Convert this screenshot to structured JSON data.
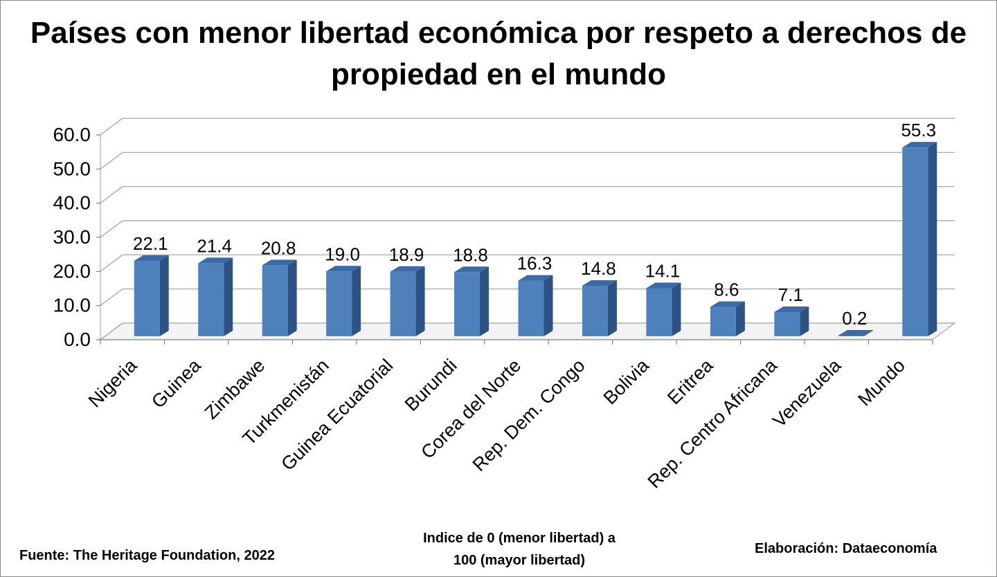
{
  "chart_data": {
    "type": "bar",
    "title": "Países con menor libertad económica por respeto a derechos de propiedad en el mundo",
    "categories": [
      "Nigeria",
      "Guinea",
      "Zimbawe",
      "Turkmenistán",
      "Guinea Ecuatorial",
      "Burundi",
      "Corea del Norte",
      "Rep. Dem. Congo",
      "Bolivia",
      "Eritrea",
      "Rep. Centro Africana",
      "Venezuela",
      "Mundo"
    ],
    "values": [
      22.1,
      21.4,
      20.8,
      19.0,
      18.9,
      18.8,
      16.3,
      14.8,
      14.1,
      8.6,
      7.1,
      0.2,
      55.3
    ],
    "value_labels": [
      "22.1",
      "21.4",
      "20.8",
      "19.0",
      "18.9",
      "18.8",
      "16.3",
      "14.8",
      "14.1",
      "8.6",
      "7.1",
      "0.2",
      "55.3"
    ],
    "y_ticks": [
      "0.0",
      "10.0",
      "20.0",
      "30.0",
      "40.0",
      "50.0",
      "60.0"
    ],
    "ylim": [
      0,
      60
    ],
    "grid": true,
    "xlabel": "",
    "ylabel": "",
    "bar_color": "#4F81BD",
    "bar_side_color": "#2E5284",
    "bar_top_color": "#3A6AA8"
  },
  "notes": {
    "source": "Fuente: The Heritage Foundation, 2022",
    "axis_note_line1": "Indice de 0 (menor libertad) a",
    "axis_note_line2": "100  (mayor libertad)",
    "credit": "Elaboración: Dataeconomía"
  }
}
